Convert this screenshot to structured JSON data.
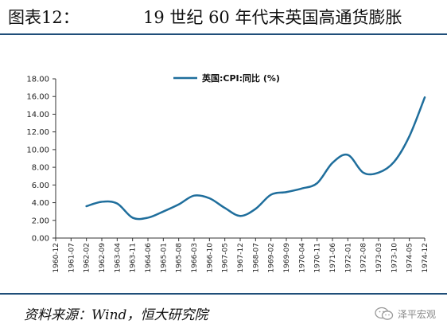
{
  "header": {
    "figure_number": "图表12：",
    "title": "19 世纪 60 年代末英国高通货膨胀"
  },
  "footer": {
    "source": "资料来源：Wind，恒大研究院",
    "brand": "泽平宏观",
    "brand_icon": "wechat-icon"
  },
  "chart_data": {
    "type": "line",
    "title": "19 世纪 60 年代末英国高通货膨胀",
    "xlabel": "",
    "ylabel": "",
    "ylim": [
      0,
      18
    ],
    "yticks": [
      "0.00",
      "2.00",
      "4.00",
      "6.00",
      "8.00",
      "10.00",
      "12.00",
      "14.00",
      "16.00",
      "18.00"
    ],
    "categories": [
      "1960-12",
      "1961-07",
      "1962-02",
      "1962-09",
      "1963-04",
      "1963-11",
      "1964-06",
      "1965-01",
      "1965-08",
      "1966-03",
      "1966-10",
      "1967-05",
      "1967-12",
      "1968-07",
      "1969-02",
      "1969-09",
      "1970-04",
      "1970-11",
      "1971-06",
      "1972-01",
      "1972-08",
      "1973-03",
      "1973-10",
      "1974-05",
      "1974-12"
    ],
    "legend_position": "top",
    "grid": false,
    "series": [
      {
        "name": "英国:CPI:同比 (%)",
        "color": "#1f6e9c",
        "points": [
          {
            "x": "1962-02",
            "y": 3.6
          },
          {
            "x": "1962-09",
            "y": 4.1
          },
          {
            "x": "1963-04",
            "y": 3.9
          },
          {
            "x": "1963-11",
            "y": 2.3
          },
          {
            "x": "1964-06",
            "y": 2.3
          },
          {
            "x": "1965-01",
            "y": 3.0
          },
          {
            "x": "1965-08",
            "y": 3.8
          },
          {
            "x": "1966-03",
            "y": 4.8
          },
          {
            "x": "1966-10",
            "y": 4.5
          },
          {
            "x": "1967-05",
            "y": 3.4
          },
          {
            "x": "1967-12",
            "y": 2.5
          },
          {
            "x": "1968-07",
            "y": 3.3
          },
          {
            "x": "1969-02",
            "y": 4.9
          },
          {
            "x": "1969-09",
            "y": 5.2
          },
          {
            "x": "1970-04",
            "y": 5.6
          },
          {
            "x": "1970-11",
            "y": 6.2
          },
          {
            "x": "1971-06",
            "y": 8.5
          },
          {
            "x": "1972-01",
            "y": 9.4
          },
          {
            "x": "1972-08",
            "y": 7.4
          },
          {
            "x": "1973-03",
            "y": 7.4
          },
          {
            "x": "1973-10",
            "y": 8.6
          },
          {
            "x": "1974-05",
            "y": 11.5
          },
          {
            "x": "1974-12",
            "y": 15.9
          }
        ]
      }
    ]
  }
}
